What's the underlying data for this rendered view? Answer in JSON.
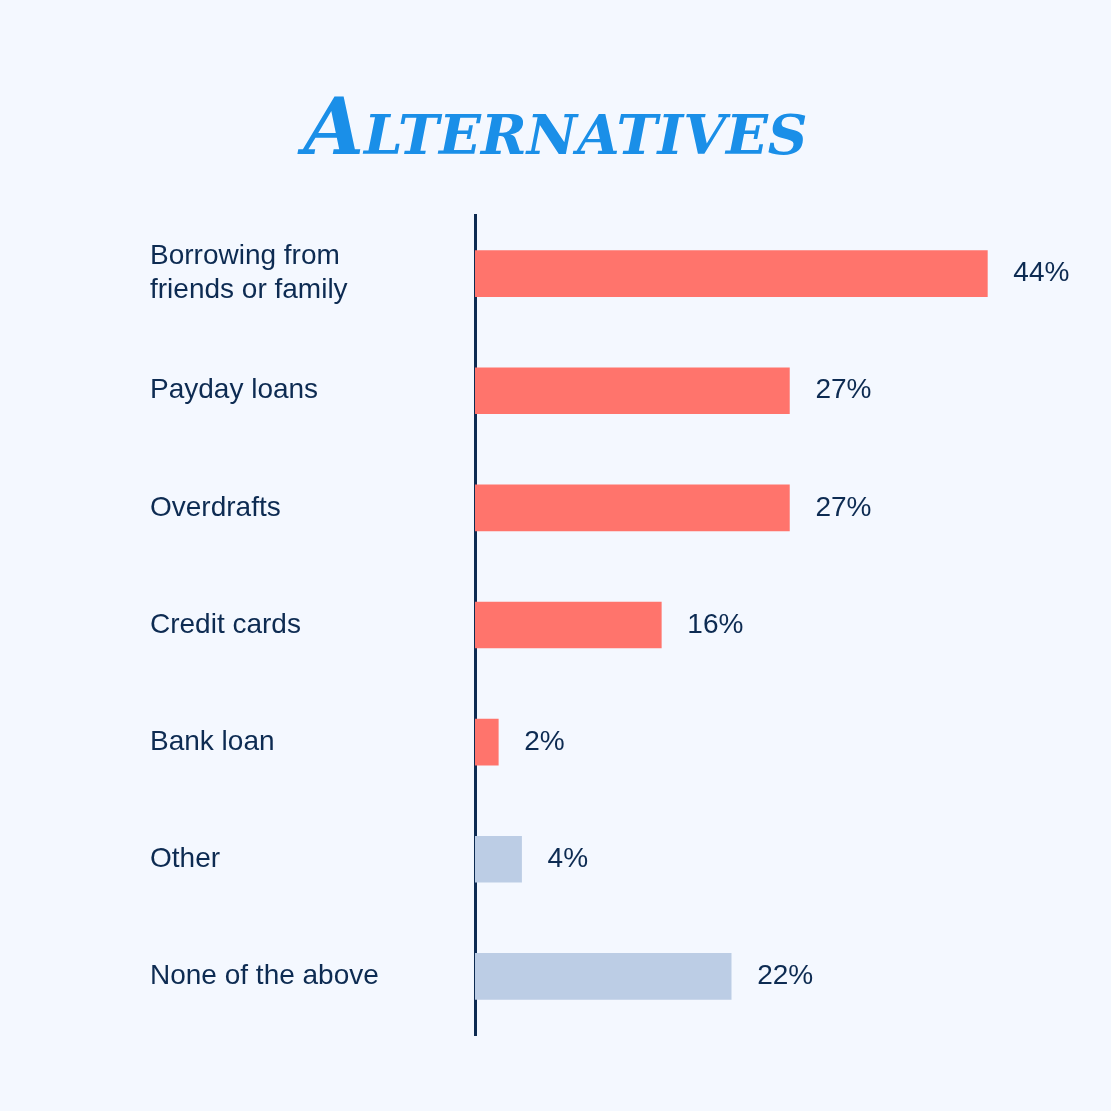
{
  "chart_data": {
    "type": "bar",
    "orientation": "horizontal",
    "title": "Alternatives",
    "categories": [
      "Borrowing from friends or family",
      "Payday loans",
      "Overdrafts",
      "Credit cards",
      "Bank loan",
      "Other",
      "None of the above"
    ],
    "values": [
      44,
      27,
      27,
      16,
      2,
      4,
      22
    ],
    "colors": [
      "#ff746c",
      "#ff746c",
      "#ff746c",
      "#ff746c",
      "#ff746c",
      "#bccde5",
      "#bccde5"
    ],
    "value_labels": [
      "44%",
      "27%",
      "27%",
      "16%",
      "2%",
      "4%",
      "22%"
    ],
    "grid": false,
    "legend": false,
    "tick_labels": "y"
  }
}
